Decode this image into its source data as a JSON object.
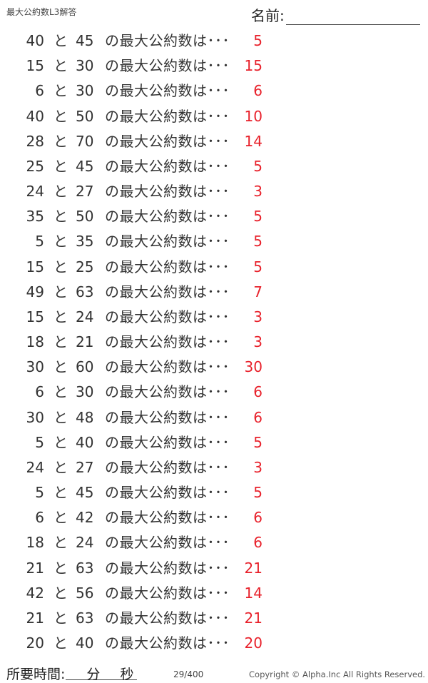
{
  "header": {
    "title": "最大公約数L3解答",
    "name_label": "名前:"
  },
  "connector": "と",
  "question_suffix": "の最大公約数は･･･",
  "problems": [
    {
      "a": "40",
      "b": "45",
      "answer": "5"
    },
    {
      "a": "15",
      "b": "30",
      "answer": "15"
    },
    {
      "a": "6",
      "b": "30",
      "answer": "6"
    },
    {
      "a": "40",
      "b": "50",
      "answer": "10"
    },
    {
      "a": "28",
      "b": "70",
      "answer": "14"
    },
    {
      "a": "25",
      "b": "45",
      "answer": "5"
    },
    {
      "a": "24",
      "b": "27",
      "answer": "3"
    },
    {
      "a": "35",
      "b": "50",
      "answer": "5"
    },
    {
      "a": "5",
      "b": "35",
      "answer": "5"
    },
    {
      "a": "15",
      "b": "25",
      "answer": "5"
    },
    {
      "a": "49",
      "b": "63",
      "answer": "7"
    },
    {
      "a": "15",
      "b": "24",
      "answer": "3"
    },
    {
      "a": "18",
      "b": "21",
      "answer": "3"
    },
    {
      "a": "30",
      "b": "60",
      "answer": "30"
    },
    {
      "a": "6",
      "b": "30",
      "answer": "6"
    },
    {
      "a": "30",
      "b": "48",
      "answer": "6"
    },
    {
      "a": "5",
      "b": "40",
      "answer": "5"
    },
    {
      "a": "24",
      "b": "27",
      "answer": "3"
    },
    {
      "a": "5",
      "b": "45",
      "answer": "5"
    },
    {
      "a": "6",
      "b": "42",
      "answer": "6"
    },
    {
      "a": "18",
      "b": "24",
      "answer": "6"
    },
    {
      "a": "21",
      "b": "63",
      "answer": "21"
    },
    {
      "a": "42",
      "b": "56",
      "answer": "14"
    },
    {
      "a": "21",
      "b": "63",
      "answer": "21"
    },
    {
      "a": "20",
      "b": "40",
      "answer": "20"
    }
  ],
  "footer": {
    "time_label": "所要時間:",
    "minutes_label": "分",
    "seconds_label": "秒",
    "page": "29/400",
    "copyright": "Copyright ©  Alpha.Inc All Rights Reserved."
  },
  "colors": {
    "answer": "#e8202a"
  }
}
